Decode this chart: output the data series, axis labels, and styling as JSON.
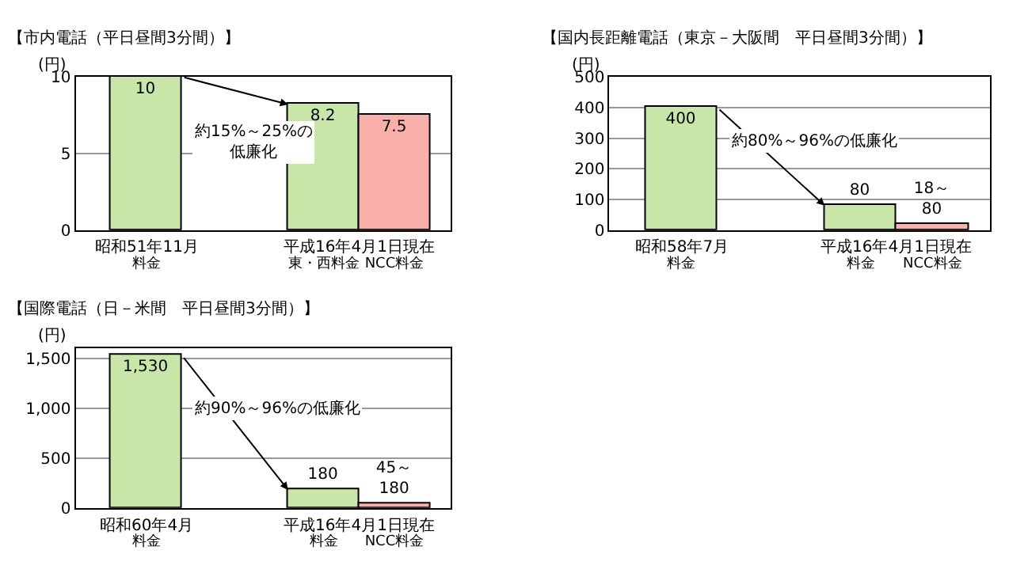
{
  "chart_data": [
    {
      "type": "bar",
      "title": "【市内電話（平日昼間3分間）】",
      "ylabel": "(円)",
      "categories": [
        "料金",
        "東・西料金",
        "NCC料金"
      ],
      "values": [
        10,
        8.2,
        7.5
      ],
      "colors": [
        "#c8e6a8",
        "#c8e6a8",
        "#f8b0a8"
      ],
      "value_labels": [
        "10",
        "8.2",
        "7.5"
      ],
      "ylim": [
        0,
        10
      ],
      "yticks": [
        0,
        5,
        10
      ],
      "grid": "y",
      "annotations": [
        "約15%～25%の低廉化",
        "昭和51年11月",
        "平成16年4月1日現在"
      ]
    },
    {
      "type": "bar",
      "title": "【国内長距離電話（東京－大阪間　平日昼間3分間）】",
      "ylabel": "(円)",
      "categories": [
        "料金",
        "料金",
        "NCC料金"
      ],
      "values": [
        400,
        80,
        18
      ],
      "colors": [
        "#c8e6a8",
        "#c8e6a8",
        "#f8b0a8"
      ],
      "value_labels": [
        "400",
        "80",
        "18～\n80"
      ],
      "ylim": [
        0,
        500
      ],
      "yticks": [
        0,
        100,
        200,
        300,
        400,
        500
      ],
      "grid": "y",
      "annotations": [
        "約80%～96%の低廉化",
        "昭和58年7月",
        "平成16年4月1日現在"
      ]
    },
    {
      "type": "bar",
      "title": "【国際電話（日－米間　平日昼間3分間）】",
      "ylabel": "(円)",
      "categories": [
        "料金",
        "料金",
        "NCC料金"
      ],
      "values": [
        1530,
        180,
        45
      ],
      "colors": [
        "#c8e6a8",
        "#c8e6a8",
        "#f8b0a8"
      ],
      "value_labels": [
        "1,530",
        "180",
        "45～\n180"
      ],
      "ylim": [
        0,
        1600
      ],
      "yticks": [
        0,
        500,
        {
          "value": 1000,
          "label": "1,000"
        },
        {
          "value": 1500,
          "label": "1,500"
        }
      ],
      "grid": "y",
      "annotations": [
        "約90%～96%の低廉化",
        "昭和60年4月",
        "平成16年4月1日現在"
      ]
    }
  ]
}
